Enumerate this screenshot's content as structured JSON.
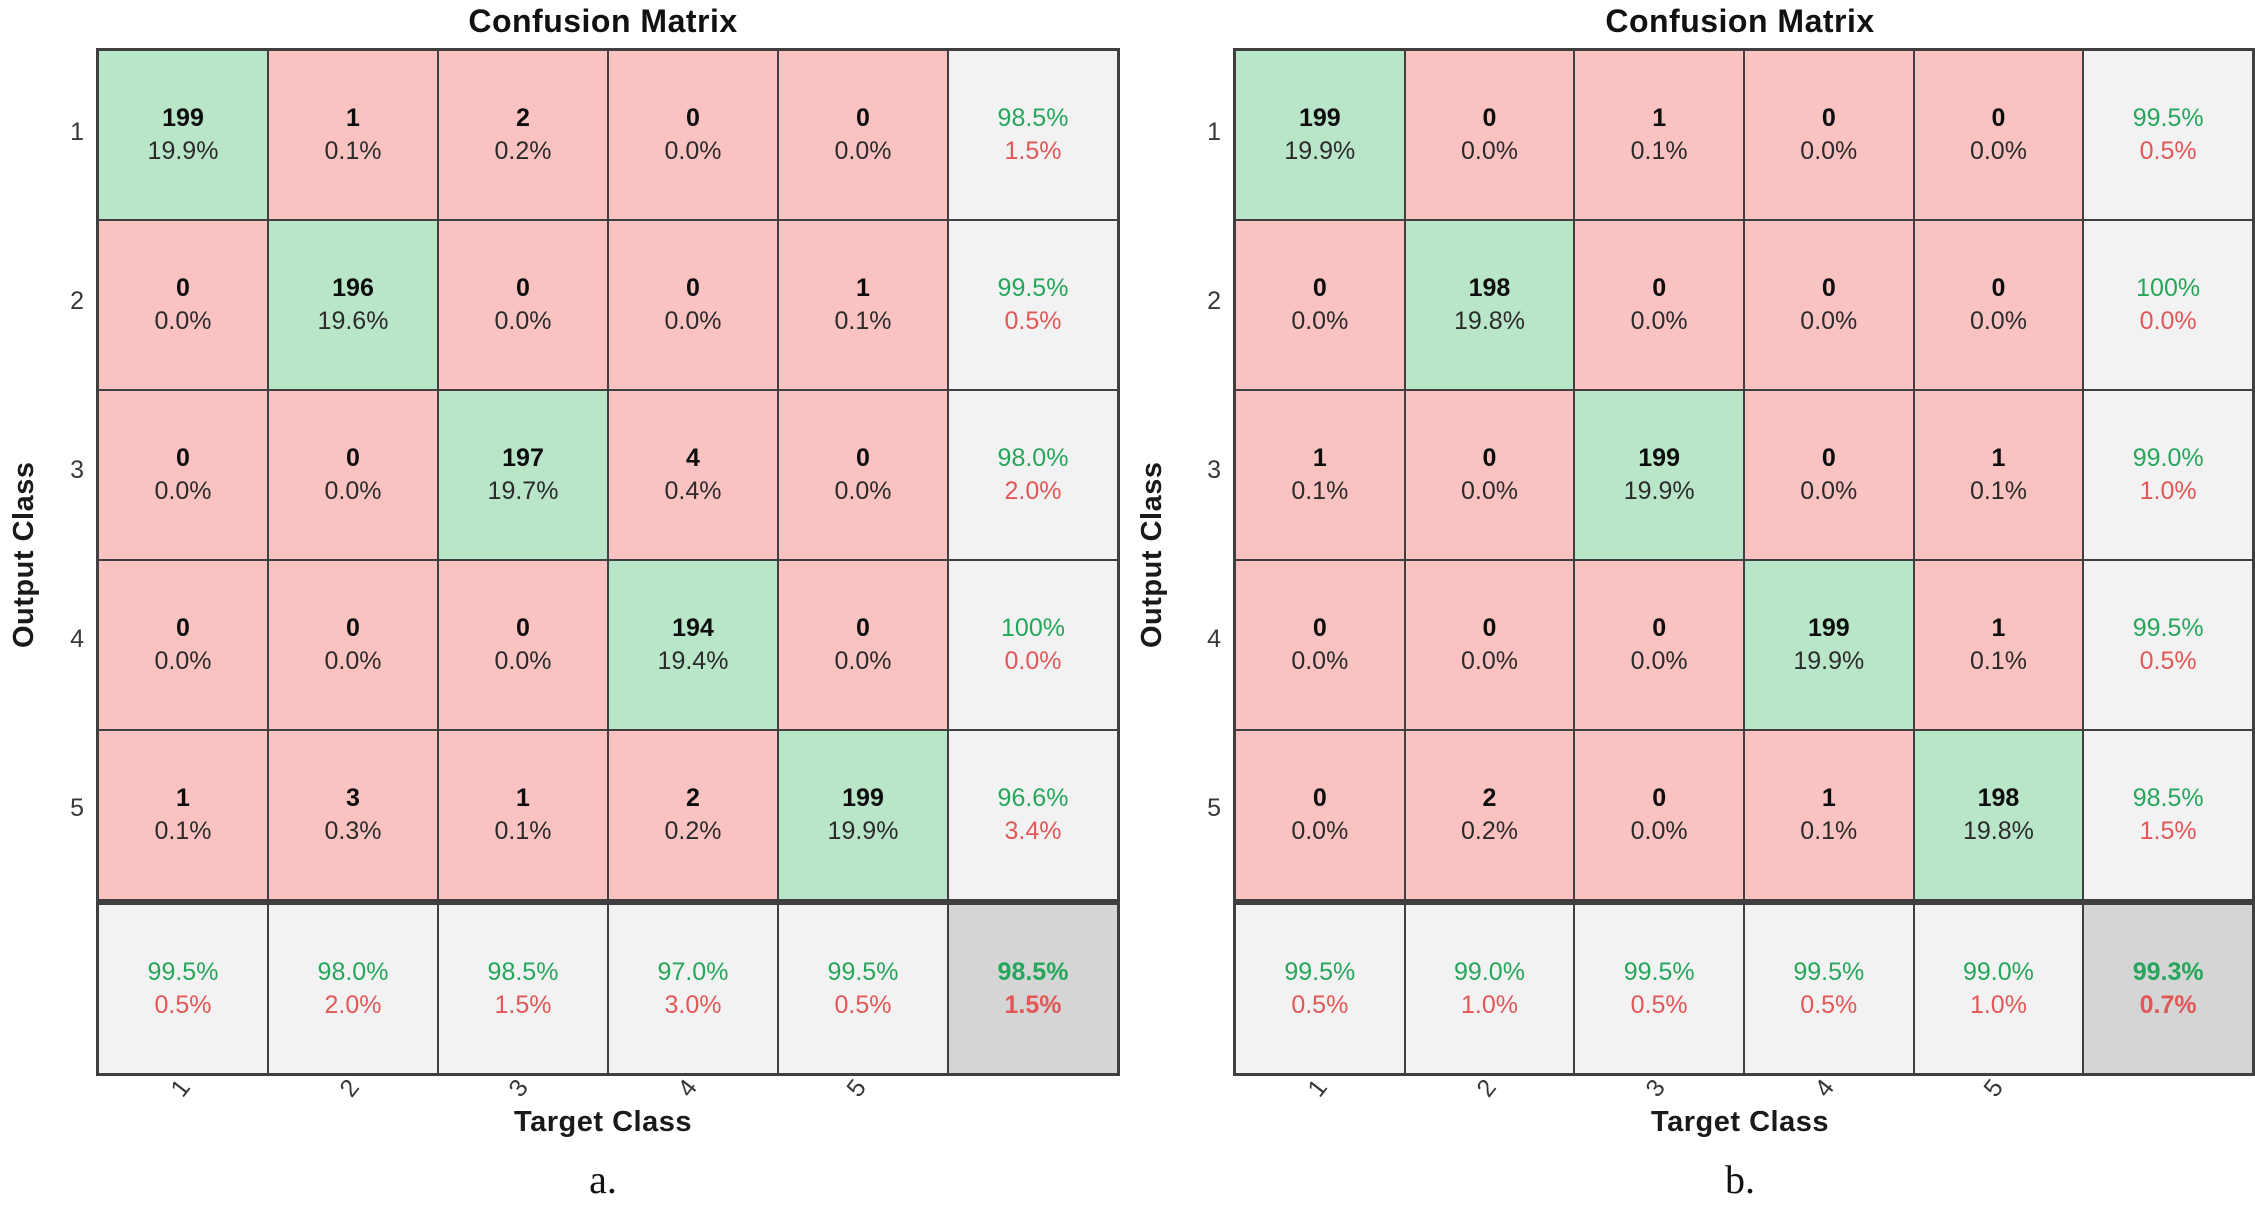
{
  "colors": {
    "diag_bg": "#b9e6c9",
    "off_bg": "#fac3c2",
    "summary_bg": "#f2f2f2",
    "total_bg": "#d5d5d5",
    "grid_line": "#3f3f3f",
    "good_text": "#26a65b",
    "bad_text": "#e25757"
  },
  "chart_data": [
    {
      "type": "heatmap",
      "title": "Confusion Matrix",
      "xlabel": "Target Class",
      "ylabel": "Output Class",
      "caption": "a.",
      "classes": [
        "1",
        "2",
        "3",
        "4",
        "5"
      ],
      "matrix": [
        [
          199,
          1,
          2,
          0,
          0
        ],
        [
          0,
          196,
          0,
          0,
          1
        ],
        [
          0,
          0,
          197,
          4,
          0
        ],
        [
          0,
          0,
          0,
          194,
          0
        ],
        [
          1,
          3,
          1,
          2,
          199
        ]
      ],
      "cell_pct": [
        [
          "19.9%",
          "0.1%",
          "0.2%",
          "0.0%",
          "0.0%"
        ],
        [
          "0.0%",
          "19.6%",
          "0.0%",
          "0.0%",
          "0.1%"
        ],
        [
          "0.0%",
          "0.0%",
          "19.7%",
          "0.4%",
          "0.0%"
        ],
        [
          "0.0%",
          "0.0%",
          "0.0%",
          "19.4%",
          "0.0%"
        ],
        [
          "0.1%",
          "0.3%",
          "0.1%",
          "0.2%",
          "19.9%"
        ]
      ],
      "row_summary": [
        [
          "98.5%",
          "1.5%"
        ],
        [
          "99.5%",
          "0.5%"
        ],
        [
          "98.0%",
          "2.0%"
        ],
        [
          "100%",
          "0.0%"
        ],
        [
          "96.6%",
          "3.4%"
        ]
      ],
      "col_summary": [
        [
          "99.5%",
          "0.5%"
        ],
        [
          "98.0%",
          "2.0%"
        ],
        [
          "98.5%",
          "1.5%"
        ],
        [
          "97.0%",
          "3.0%"
        ],
        [
          "99.5%",
          "0.5%"
        ]
      ],
      "overall": [
        "98.5%",
        "1.5%"
      ]
    },
    {
      "type": "heatmap",
      "title": "Confusion Matrix",
      "xlabel": "Target Class",
      "ylabel": "Output Class",
      "caption": "b.",
      "classes": [
        "1",
        "2",
        "3",
        "4",
        "5"
      ],
      "matrix": [
        [
          199,
          0,
          1,
          0,
          0
        ],
        [
          0,
          198,
          0,
          0,
          0
        ],
        [
          1,
          0,
          199,
          0,
          1
        ],
        [
          0,
          0,
          0,
          199,
          1
        ],
        [
          0,
          2,
          0,
          1,
          198
        ]
      ],
      "cell_pct": [
        [
          "19.9%",
          "0.0%",
          "0.1%",
          "0.0%",
          "0.0%"
        ],
        [
          "0.0%",
          "19.8%",
          "0.0%",
          "0.0%",
          "0.0%"
        ],
        [
          "0.1%",
          "0.0%",
          "19.9%",
          "0.0%",
          "0.1%"
        ],
        [
          "0.0%",
          "0.0%",
          "0.0%",
          "19.9%",
          "0.1%"
        ],
        [
          "0.0%",
          "0.2%",
          "0.0%",
          "0.1%",
          "19.8%"
        ]
      ],
      "row_summary": [
        [
          "99.5%",
          "0.5%"
        ],
        [
          "100%",
          "0.0%"
        ],
        [
          "99.0%",
          "1.0%"
        ],
        [
          "99.5%",
          "0.5%"
        ],
        [
          "98.5%",
          "1.5%"
        ]
      ],
      "col_summary": [
        [
          "99.5%",
          "0.5%"
        ],
        [
          "99.0%",
          "1.0%"
        ],
        [
          "99.5%",
          "0.5%"
        ],
        [
          "99.5%",
          "0.5%"
        ],
        [
          "99.0%",
          "1.0%"
        ]
      ],
      "overall": [
        "99.3%",
        "0.7%"
      ]
    }
  ]
}
